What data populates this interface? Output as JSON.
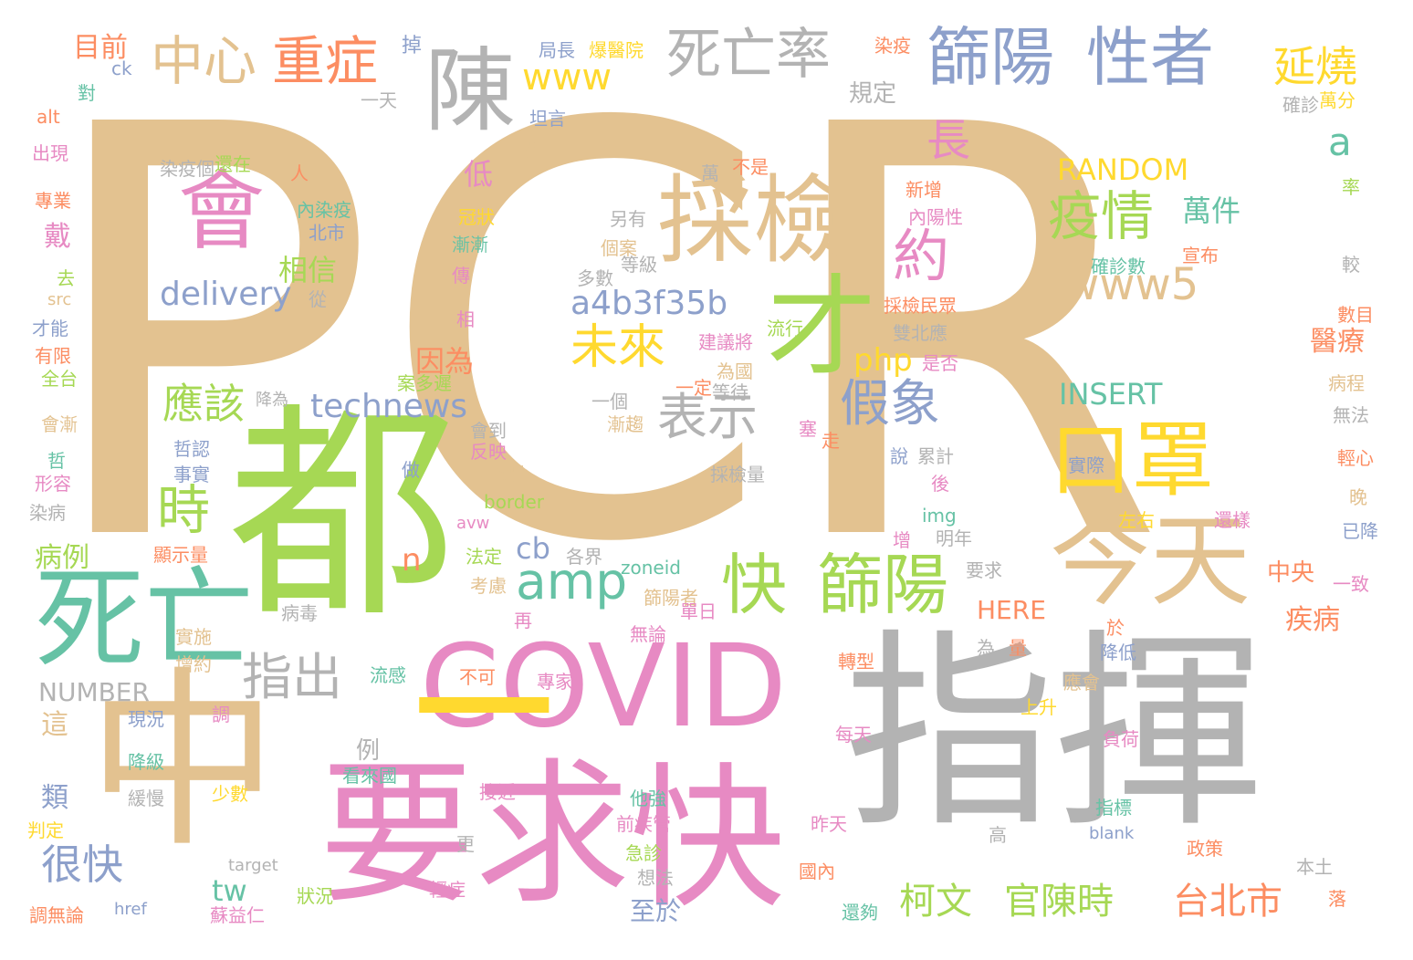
{
  "palette": {
    "tan": "#e3c290",
    "gray": "#b3b3b3",
    "green": "#a6d854",
    "pink": "#e78ac3",
    "blue": "#8da0cb",
    "orange": "#fc8d62",
    "teal": "#66c2a5",
    "yellow": "#ffd92f"
  },
  "words": [
    {
      "text": "PCR",
      "color": "tan"
    },
    {
      "text": "都",
      "color": "green"
    },
    {
      "text": "指揮",
      "color": "gray"
    },
    {
      "text": "中",
      "color": "tan"
    },
    {
      "text": "要求",
      "color": "pink"
    },
    {
      "text": "快",
      "color": "pink"
    },
    {
      "text": "COVID",
      "color": "pink"
    },
    {
      "text": "一",
      "color": "yellow"
    },
    {
      "text": "死亡",
      "color": "teal"
    },
    {
      "text": "今天",
      "color": "tan"
    },
    {
      "text": "口罩",
      "color": "yellow"
    },
    {
      "text": "採檢",
      "color": "tan"
    },
    {
      "text": "才",
      "color": "green"
    },
    {
      "text": "會",
      "color": "pink"
    },
    {
      "text": "陳",
      "color": "gray"
    },
    {
      "text": "篩陽",
      "color": "blue"
    },
    {
      "text": "性者",
      "color": "blue"
    },
    {
      "text": "死亡率",
      "color": "gray"
    },
    {
      "text": "中心",
      "color": "tan"
    },
    {
      "text": "重症",
      "color": "orange"
    },
    {
      "text": "篩陽",
      "color": "green"
    },
    {
      "text": "快",
      "color": "green"
    },
    {
      "text": "指出",
      "color": "gray"
    },
    {
      "text": "表示",
      "color": "gray"
    },
    {
      "text": "假象",
      "color": "blue"
    },
    {
      "text": "疫情",
      "color": "green"
    },
    {
      "text": "未來",
      "color": "yellow"
    },
    {
      "text": "amp",
      "color": "teal"
    },
    {
      "text": "約",
      "color": "pink"
    },
    {
      "text": "應該",
      "color": "green"
    },
    {
      "text": "時",
      "color": "green"
    },
    {
      "text": "延燒",
      "color": "yellow"
    },
    {
      "text": "www5",
      "color": "tan"
    },
    {
      "text": "www",
      "color": "yellow"
    },
    {
      "text": "長",
      "color": "pink"
    },
    {
      "text": "a",
      "color": "teal"
    },
    {
      "text": "柯文",
      "color": "green"
    },
    {
      "text": "官陳時",
      "color": "green"
    },
    {
      "text": "台北市",
      "color": "orange"
    },
    {
      "text": "很快",
      "color": "blue"
    },
    {
      "text": "delivery",
      "color": "blue"
    },
    {
      "text": "technews",
      "color": "blue"
    },
    {
      "text": "a4b3f35b",
      "color": "blue"
    },
    {
      "text": "php",
      "color": "yellow"
    },
    {
      "text": "RANDOM",
      "color": "yellow"
    },
    {
      "text": "INSERT",
      "color": "teal"
    },
    {
      "text": "cb",
      "color": "blue"
    },
    {
      "text": "n",
      "color": "orange"
    },
    {
      "text": "tw",
      "color": "teal"
    },
    {
      "text": "相信",
      "color": "green"
    },
    {
      "text": "因為",
      "color": "orange"
    },
    {
      "text": "低",
      "color": "pink"
    },
    {
      "text": "萬件",
      "color": "teal"
    },
    {
      "text": "醫療",
      "color": "orange"
    },
    {
      "text": "疾病",
      "color": "orange"
    },
    {
      "text": "中央",
      "color": "orange"
    },
    {
      "text": "HERE",
      "color": "orange"
    },
    {
      "text": "病例",
      "color": "green"
    },
    {
      "text": "目前",
      "color": "orange"
    },
    {
      "text": "至於",
      "color": "blue"
    },
    {
      "text": "規定",
      "color": "gray"
    },
    {
      "text": "例",
      "color": "gray"
    },
    {
      "text": "類",
      "color": "blue"
    },
    {
      "text": "這",
      "color": "tan"
    },
    {
      "text": "NUMBER",
      "color": "gray"
    },
    {
      "text": "戴",
      "color": "pink"
    },
    {
      "text": "掉",
      "color": "blue"
    },
    {
      "text": "對",
      "color": "teal"
    },
    {
      "text": "ck",
      "color": "blue"
    },
    {
      "text": "alt",
      "color": "orange"
    },
    {
      "text": "出現",
      "color": "pink"
    },
    {
      "text": "專業",
      "color": "orange"
    },
    {
      "text": "去",
      "color": "green"
    },
    {
      "text": "src",
      "color": "tan"
    },
    {
      "text": "才能",
      "color": "blue"
    },
    {
      "text": "有限",
      "color": "orange"
    },
    {
      "text": "全台",
      "color": "green"
    },
    {
      "text": "會漸",
      "color": "tan"
    },
    {
      "text": "哲",
      "color": "teal"
    },
    {
      "text": "形容",
      "color": "pink"
    },
    {
      "text": "染病",
      "color": "gray"
    },
    {
      "text": "判定",
      "color": "yellow"
    },
    {
      "text": "調無論",
      "color": "orange"
    },
    {
      "text": "局長",
      "color": "blue"
    },
    {
      "text": "爆醫院",
      "color": "yellow"
    },
    {
      "text": "一天",
      "color": "gray"
    },
    {
      "text": "坦言",
      "color": "blue"
    },
    {
      "text": "針對",
      "color": "tan"
    },
    {
      "text": "染疫個",
      "color": "gray"
    },
    {
      "text": "還在",
      "color": "green"
    },
    {
      "text": "人",
      "color": "orange"
    },
    {
      "text": "內染疫",
      "color": "teal"
    },
    {
      "text": "北市",
      "color": "blue"
    },
    {
      "text": "冠狀",
      "color": "yellow"
    },
    {
      "text": "漸漸",
      "color": "teal"
    },
    {
      "text": "傳",
      "color": "pink"
    },
    {
      "text": "從",
      "color": "gray"
    },
    {
      "text": "相",
      "color": "pink"
    },
    {
      "text": "萬",
      "color": "gray"
    },
    {
      "text": "不是",
      "color": "orange"
    },
    {
      "text": "另有",
      "color": "gray"
    },
    {
      "text": "個案",
      "color": "tan"
    },
    {
      "text": "等級",
      "color": "gray"
    },
    {
      "text": "多數",
      "color": "gray"
    },
    {
      "text": "流行",
      "color": "green"
    },
    {
      "text": "新增",
      "color": "orange"
    },
    {
      "text": "內陽性",
      "color": "pink"
    },
    {
      "text": "採檢民眾",
      "color": "orange"
    },
    {
      "text": "雙北應",
      "color": "gray"
    },
    {
      "text": "建議將",
      "color": "pink"
    },
    {
      "text": "是否",
      "color": "pink"
    },
    {
      "text": "為國",
      "color": "tan"
    },
    {
      "text": "一定",
      "color": "orange"
    },
    {
      "text": "等待",
      "color": "gray"
    },
    {
      "text": "一個",
      "color": "gray"
    },
    {
      "text": "漸趨",
      "color": "tan"
    },
    {
      "text": "塞",
      "color": "pink"
    },
    {
      "text": "走",
      "color": "orange"
    },
    {
      "text": "說",
      "color": "blue"
    },
    {
      "text": "累計",
      "color": "gray"
    },
    {
      "text": "後",
      "color": "pink"
    },
    {
      "text": "採檢量",
      "color": "gray"
    },
    {
      "text": "時機點",
      "color": "tan"
    },
    {
      "text": "反映",
      "color": "pink"
    },
    {
      "text": "會到",
      "color": "gray"
    },
    {
      "text": "案多遲",
      "color": "green"
    },
    {
      "text": "做",
      "color": "blue"
    },
    {
      "text": "border",
      "color": "green"
    },
    {
      "text": "avw",
      "color": "pink"
    },
    {
      "text": "法定",
      "color": "green"
    },
    {
      "text": "考慮",
      "color": "tan"
    },
    {
      "text": "各界",
      "color": "gray"
    },
    {
      "text": "zoneid",
      "color": "teal"
    },
    {
      "text": "篩陽者",
      "color": "tan"
    },
    {
      "text": "要求",
      "color": "gray"
    },
    {
      "text": "明年",
      "color": "gray"
    },
    {
      "text": "增",
      "color": "pink"
    },
    {
      "text": "img",
      "color": "teal"
    },
    {
      "text": "病毒",
      "color": "gray"
    },
    {
      "text": "無論",
      "color": "pink"
    },
    {
      "text": "單日",
      "color": "pink"
    },
    {
      "text": "再",
      "color": "pink"
    },
    {
      "text": "不可",
      "color": "orange"
    },
    {
      "text": "專家",
      "color": "pink"
    },
    {
      "text": "流感",
      "color": "teal"
    },
    {
      "text": "轉型",
      "color": "orange"
    },
    {
      "text": "為",
      "color": "gray"
    },
    {
      "text": "量",
      "color": "orange"
    },
    {
      "text": "降低",
      "color": "blue"
    },
    {
      "text": "應會",
      "color": "tan"
    },
    {
      "text": "上升",
      "color": "yellow"
    },
    {
      "text": "每天",
      "color": "pink"
    },
    {
      "text": "負荷",
      "color": "pink"
    },
    {
      "text": "染疫",
      "color": "orange"
    },
    {
      "text": "確診",
      "color": "gray"
    },
    {
      "text": "萬分",
      "color": "yellow"
    },
    {
      "text": "率",
      "color": "green"
    },
    {
      "text": "宣布",
      "color": "orange"
    },
    {
      "text": "確診數",
      "color": "teal"
    },
    {
      "text": "較",
      "color": "gray"
    },
    {
      "text": "數目",
      "color": "orange"
    },
    {
      "text": "病程",
      "color": "tan"
    },
    {
      "text": "無法",
      "color": "gray"
    },
    {
      "text": "輕心",
      "color": "orange"
    },
    {
      "text": "晚",
      "color": "tan"
    },
    {
      "text": "還樣",
      "color": "pink"
    },
    {
      "text": "已降",
      "color": "blue"
    },
    {
      "text": "左右",
      "color": "yellow"
    },
    {
      "text": "實際",
      "color": "blue"
    },
    {
      "text": "一致",
      "color": "pink"
    },
    {
      "text": "現況",
      "color": "blue"
    },
    {
      "text": "調",
      "color": "pink"
    },
    {
      "text": "降級",
      "color": "teal"
    },
    {
      "text": "緩慢",
      "color": "gray"
    },
    {
      "text": "少數",
      "color": "yellow"
    },
    {
      "text": "看來國",
      "color": "teal"
    },
    {
      "text": "接近",
      "color": "pink"
    },
    {
      "text": "他強",
      "color": "teal"
    },
    {
      "text": "前疾管",
      "color": "pink"
    },
    {
      "text": "急診",
      "color": "green"
    },
    {
      "text": "想法",
      "color": "gray"
    },
    {
      "text": "輕症",
      "color": "pink"
    },
    {
      "text": "更",
      "color": "gray"
    },
    {
      "text": "狀況",
      "color": "green"
    },
    {
      "text": "target",
      "color": "gray"
    },
    {
      "text": "href",
      "color": "blue"
    },
    {
      "text": "蘇益仁",
      "color": "pink"
    },
    {
      "text": "國內",
      "color": "orange"
    },
    {
      "text": "還夠",
      "color": "teal"
    },
    {
      "text": "昨天",
      "color": "pink"
    },
    {
      "text": "指標",
      "color": "teal"
    },
    {
      "text": "高",
      "color": "gray"
    },
    {
      "text": "blank",
      "color": "blue"
    },
    {
      "text": "政策",
      "color": "orange"
    },
    {
      "text": "本土",
      "color": "gray"
    },
    {
      "text": "落",
      "color": "orange"
    },
    {
      "text": "實施",
      "color": "tan"
    },
    {
      "text": "增約",
      "color": "tan"
    },
    {
      "text": "哲認",
      "color": "blue"
    },
    {
      "text": "事實",
      "color": "blue"
    },
    {
      "text": "降為",
      "color": "gray"
    },
    {
      "text": "顯示量",
      "color": "orange"
    },
    {
      "text": "於",
      "color": "orange"
    }
  ]
}
